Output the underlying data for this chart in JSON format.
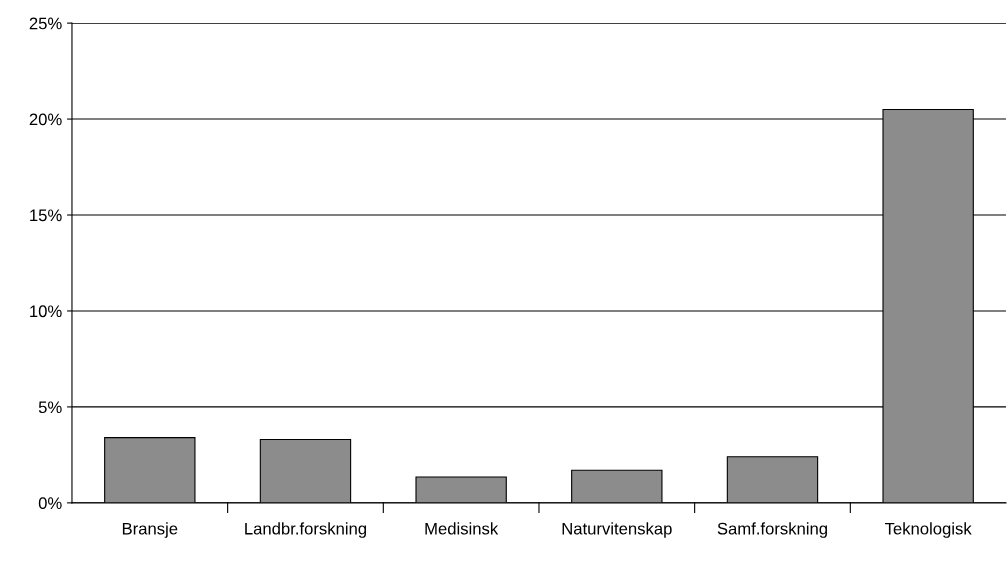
{
  "chart_data": {
    "type": "bar",
    "categories": [
      "Bransje",
      "Landbr.forskning",
      "Medisinsk",
      "Naturvitenskap",
      "Samf.forskning",
      "Teknologisk"
    ],
    "values": [
      3.4,
      3.3,
      1.35,
      1.7,
      2.4,
      20.5
    ],
    "color": "#8c8c8c",
    "ylim": [
      0,
      25
    ],
    "yticks": [
      {
        "value": 0,
        "label": "0%"
      },
      {
        "value": 5,
        "label": "5%"
      },
      {
        "value": 10,
        "label": "10%"
      },
      {
        "value": 15,
        "label": "15%"
      },
      {
        "value": 20,
        "label": "20%"
      },
      {
        "value": 25,
        "label": "25%"
      }
    ],
    "grid": "y"
  }
}
